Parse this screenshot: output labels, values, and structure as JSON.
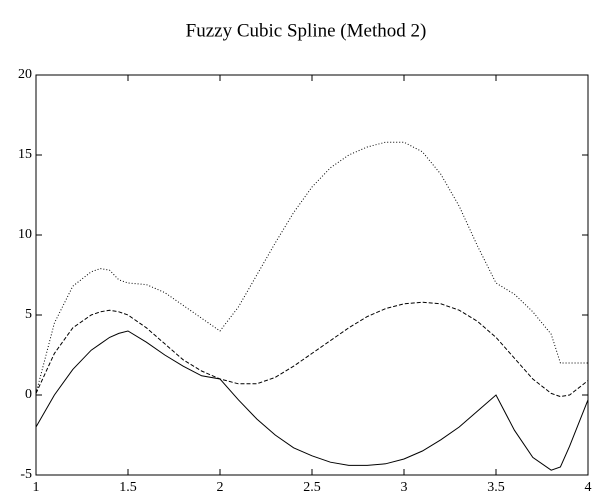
{
  "chart_data": {
    "type": "line",
    "title": "Fuzzy Cubic Spline (Method 2)",
    "x": [
      1,
      1.1,
      1.2,
      1.3,
      1.35,
      1.4,
      1.45,
      1.5,
      1.6,
      1.7,
      1.8,
      1.9,
      2,
      2.1,
      2.2,
      2.3,
      2.4,
      2.5,
      2.6,
      2.7,
      2.8,
      2.9,
      3,
      3.1,
      3.2,
      3.3,
      3.4,
      3.5,
      3.6,
      3.7,
      3.8,
      3.85,
      3.9,
      4
    ],
    "series": [
      {
        "color": "#000000",
        "dash": "solid",
        "values": [
          -2,
          0,
          1.6,
          2.8,
          3.2,
          3.6,
          3.85,
          4.0,
          3.3,
          2.5,
          1.8,
          1.2,
          1.0,
          -0.3,
          -1.5,
          -2.5,
          -3.3,
          -3.8,
          -4.2,
          -4.4,
          -4.4,
          -4.3,
          -4.0,
          -3.5,
          -2.8,
          -2.0,
          -1.0,
          0,
          -2.2,
          -3.9,
          -4.7,
          -4.5,
          -3.2,
          -0.3
        ]
      },
      {
        "color": "#000000",
        "dash": "dashed",
        "values": [
          0.1,
          2.6,
          4.2,
          5.0,
          5.2,
          5.3,
          5.2,
          5.0,
          4.2,
          3.2,
          2.2,
          1.5,
          1.0,
          0.7,
          0.7,
          1.1,
          1.8,
          2.6,
          3.4,
          4.2,
          4.9,
          5.4,
          5.7,
          5.8,
          5.7,
          5.3,
          4.6,
          3.6,
          2.3,
          1.0,
          0.1,
          -0.1,
          0.0,
          0.9
        ]
      },
      {
        "color": "#000000",
        "dash": "dotted",
        "values": [
          0.1,
          4.5,
          6.8,
          7.7,
          7.9,
          7.8,
          7.2,
          7.0,
          6.9,
          6.4,
          5.6,
          4.8,
          4.0,
          5.5,
          7.5,
          9.5,
          11.4,
          13.0,
          14.2,
          15.0,
          15.5,
          15.8,
          15.8,
          15.2,
          13.8,
          11.8,
          9.3,
          7.0,
          6.3,
          5.2,
          3.8,
          2.0,
          2.0,
          2.0
        ]
      }
    ],
    "xlim": [
      1,
      4
    ],
    "xticks": [
      1,
      1.5,
      2,
      2.5,
      3,
      3.5,
      4
    ],
    "ylim": [
      -5,
      20
    ],
    "yticks": [
      -5,
      0,
      5,
      10,
      15,
      20
    ],
    "grid": false
  }
}
